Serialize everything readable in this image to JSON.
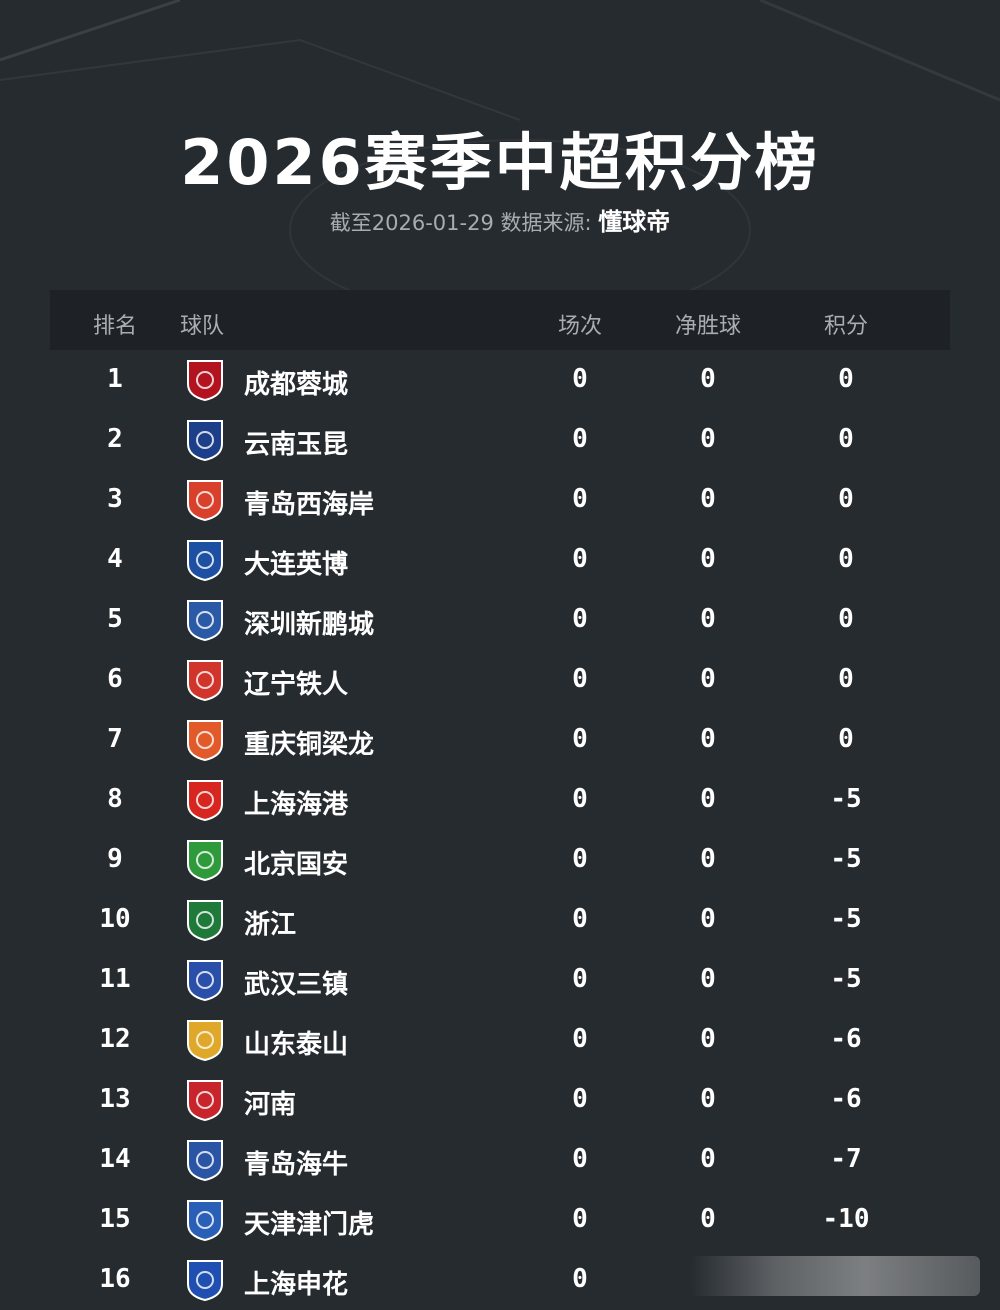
{
  "title": "2026赛季中超积分榜",
  "subtitle": {
    "prefix": "截至2026-01-29 数据来源: ",
    "source": "懂球帝"
  },
  "headers": {
    "rank": "排名",
    "team": "球队",
    "played": "场次",
    "gd": "净胜球",
    "pts": "积分"
  },
  "rows": [
    {
      "rank": "1",
      "team": "成都蓉城",
      "played": "0",
      "gd": "0",
      "pts": "0",
      "color": "#b3121f"
    },
    {
      "rank": "2",
      "team": "云南玉昆",
      "played": "0",
      "gd": "0",
      "pts": "0",
      "color": "#1d3f8a"
    },
    {
      "rank": "3",
      "team": "青岛西海岸",
      "played": "0",
      "gd": "0",
      "pts": "0",
      "color": "#d9402b"
    },
    {
      "rank": "4",
      "team": "大连英博",
      "played": "0",
      "gd": "0",
      "pts": "0",
      "color": "#1d4fa3"
    },
    {
      "rank": "5",
      "team": "深圳新鹏城",
      "played": "0",
      "gd": "0",
      "pts": "0",
      "color": "#2a5aa6"
    },
    {
      "rank": "6",
      "team": "辽宁铁人",
      "played": "0",
      "gd": "0",
      "pts": "0",
      "color": "#d1342a"
    },
    {
      "rank": "7",
      "team": "重庆铜梁龙",
      "played": "0",
      "gd": "0",
      "pts": "0",
      "color": "#e35a2a"
    },
    {
      "rank": "8",
      "team": "上海海港",
      "played": "0",
      "gd": "0",
      "pts": "-5",
      "color": "#d7261f"
    },
    {
      "rank": "9",
      "team": "北京国安",
      "played": "0",
      "gd": "0",
      "pts": "-5",
      "color": "#2f9a3c"
    },
    {
      "rank": "10",
      "team": "浙江",
      "played": "0",
      "gd": "0",
      "pts": "-5",
      "color": "#1f7a3a"
    },
    {
      "rank": "11",
      "team": "武汉三镇",
      "played": "0",
      "gd": "0",
      "pts": "-5",
      "color": "#2a4fa8"
    },
    {
      "rank": "12",
      "team": "山东泰山",
      "played": "0",
      "gd": "0",
      "pts": "-6",
      "color": "#e0a82a"
    },
    {
      "rank": "13",
      "team": "河南",
      "played": "0",
      "gd": "0",
      "pts": "-6",
      "color": "#c8242b"
    },
    {
      "rank": "14",
      "team": "青岛海牛",
      "played": "0",
      "gd": "0",
      "pts": "-7",
      "color": "#2a55a5"
    },
    {
      "rank": "15",
      "team": "天津津门虎",
      "played": "0",
      "gd": "0",
      "pts": "-10",
      "color": "#2a5fb8"
    },
    {
      "rank": "16",
      "team": "上海申花",
      "played": "0",
      "gd": "",
      "pts": "",
      "color": "#1f4fb0"
    }
  ]
}
